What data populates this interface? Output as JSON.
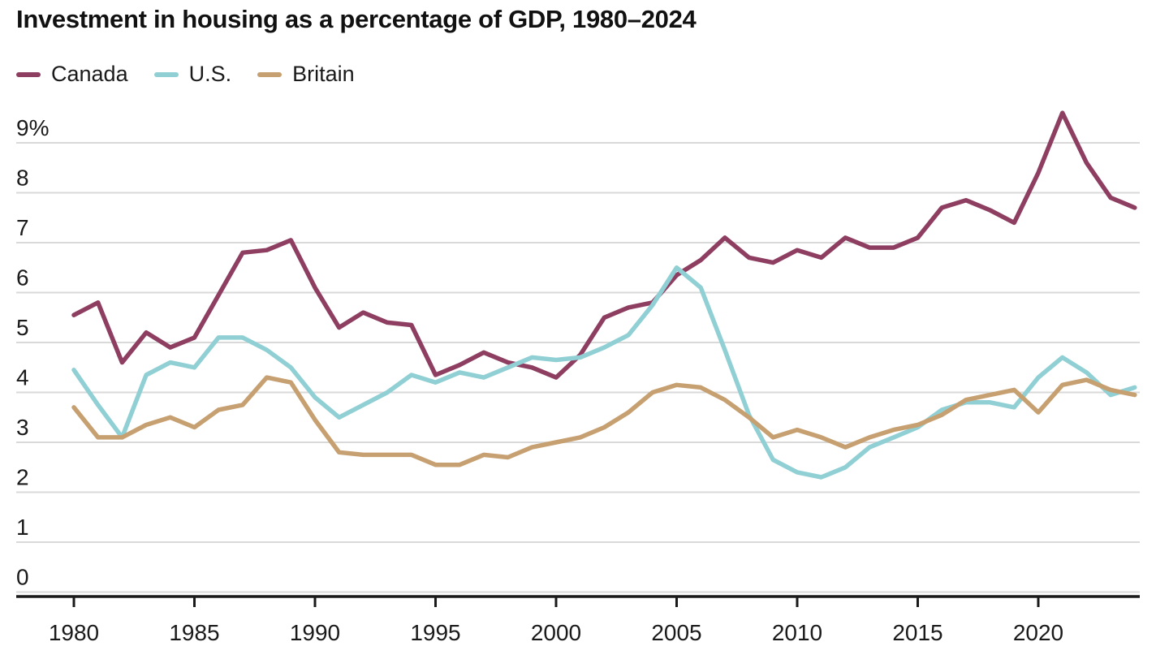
{
  "title": "Investment in housing as a percentage of GDP, 1980–2024",
  "legend": {
    "items": [
      {
        "label": "Canada",
        "color": "#8e3e60"
      },
      {
        "label": "U.S.",
        "color": "#90d0d5"
      },
      {
        "label": "Britain",
        "color": "#c7a071"
      }
    ]
  },
  "chart_data": {
    "type": "line",
    "title": "Investment in housing as a percentage of GDP, 1980–2024",
    "xlabel": "",
    "ylabel": "",
    "x": [
      1980,
      1981,
      1982,
      1983,
      1984,
      1985,
      1986,
      1987,
      1988,
      1989,
      1990,
      1991,
      1992,
      1993,
      1994,
      1995,
      1996,
      1997,
      1998,
      1999,
      2000,
      2001,
      2002,
      2003,
      2004,
      2005,
      2006,
      2007,
      2008,
      2009,
      2010,
      2011,
      2012,
      2013,
      2014,
      2015,
      2016,
      2017,
      2018,
      2019,
      2020,
      2021,
      2022,
      2023,
      2024
    ],
    "series": [
      {
        "name": "Canada",
        "color": "#8e3e60",
        "values": [
          5.55,
          5.8,
          4.6,
          5.2,
          4.9,
          5.1,
          5.95,
          6.8,
          6.85,
          7.05,
          6.1,
          5.3,
          5.6,
          5.4,
          5.35,
          4.35,
          4.55,
          4.8,
          4.6,
          4.5,
          4.3,
          4.75,
          5.5,
          5.7,
          5.8,
          6.35,
          6.65,
          7.1,
          6.7,
          6.6,
          6.85,
          6.7,
          7.1,
          6.9,
          6.9,
          7.1,
          7.7,
          7.85,
          7.65,
          7.4,
          8.4,
          9.6,
          8.6,
          7.9,
          7.7
        ]
      },
      {
        "name": "U.S.",
        "color": "#90d0d5",
        "values": [
          4.45,
          3.75,
          3.1,
          4.35,
          4.6,
          4.5,
          5.1,
          5.1,
          4.85,
          4.5,
          3.9,
          3.5,
          3.75,
          4.0,
          4.35,
          4.2,
          4.4,
          4.3,
          4.5,
          4.7,
          4.65,
          4.7,
          4.9,
          5.15,
          5.75,
          6.5,
          6.1,
          4.85,
          3.55,
          2.65,
          2.4,
          2.3,
          2.5,
          2.9,
          3.1,
          3.3,
          3.65,
          3.8,
          3.8,
          3.7,
          4.3,
          4.7,
          4.4,
          3.95,
          4.1
        ]
      },
      {
        "name": "Britain",
        "color": "#c7a071",
        "values": [
          3.7,
          3.1,
          3.1,
          3.35,
          3.5,
          3.3,
          3.65,
          3.75,
          4.3,
          4.2,
          3.45,
          2.8,
          2.75,
          2.75,
          2.75,
          2.55,
          2.55,
          2.75,
          2.7,
          2.9,
          3.0,
          3.1,
          3.3,
          3.6,
          4.0,
          4.15,
          4.1,
          3.85,
          3.5,
          3.1,
          3.25,
          3.1,
          2.9,
          3.1,
          3.25,
          3.35,
          3.55,
          3.85,
          3.95,
          4.05,
          3.6,
          4.15,
          4.25,
          4.05,
          3.95
        ]
      }
    ],
    "y_ticks": [
      0,
      1,
      2,
      3,
      4,
      5,
      6,
      7,
      8,
      9
    ],
    "y_tick_labels": [
      "0",
      "1",
      "2",
      "3",
      "4",
      "5",
      "6",
      "7",
      "8",
      "9%"
    ],
    "x_tick_years": [
      1980,
      1985,
      1990,
      1995,
      2000,
      2005,
      2010,
      2015,
      2020
    ],
    "x_tick_labels": [
      "1980",
      "1985",
      "1990",
      "1995",
      "2000",
      "2005",
      "2010",
      "2015",
      "2020"
    ],
    "ylim": [
      0,
      9.7
    ],
    "xlim": [
      1980,
      2024
    ],
    "grid": "horizontal-only",
    "legend_position": "top-left",
    "style": {
      "grid_color": "#d9d9d9",
      "axis_color": "#1a1a1a",
      "text_color": "#1a1a1a",
      "background": "#ffffff"
    }
  }
}
